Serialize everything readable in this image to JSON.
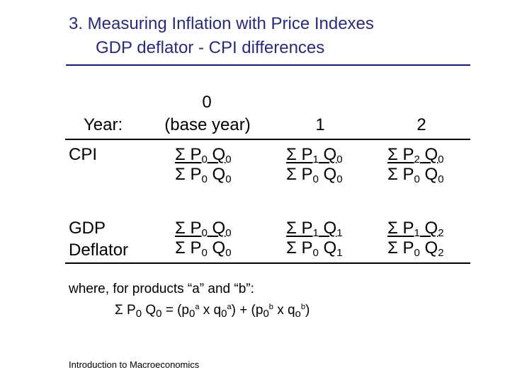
{
  "slide": {
    "title_line1": "3.  Measuring Inflation with Price Indexes",
    "title_line2": "GDP deflator - CPI differences",
    "footer": "Introduction to Macroeconomics",
    "title_color": "#2a2a7a"
  },
  "table": {
    "header": {
      "year_label": "Year:",
      "col0_top": "0",
      "col0_bottom": "(base year)",
      "col1": "1",
      "col2": "2"
    },
    "rows": [
      {
        "label": [
          "CPI"
        ],
        "cells": [
          {
            "num": "Σ P0 Q0",
            "den": "Σ P0 Q0"
          },
          {
            "num": "Σ P1 Q0",
            "den": "Σ P0 Q0"
          },
          {
            "num": "Σ P2 Q0",
            "den": "Σ P0 Q0"
          }
        ]
      },
      {
        "label": [
          "GDP",
          "Deflator"
        ],
        "cells": [
          {
            "num": "Σ P0 Q0",
            "den": "Σ P0 Q0"
          },
          {
            "num": "Σ P1 Q1",
            "den": "Σ P0 Q1"
          },
          {
            "num": "Σ P1 Q2",
            "den": "Σ P0 Q2"
          }
        ]
      }
    ]
  },
  "note": {
    "intro": "where, for products “a” and “b”:",
    "formula": "Σ P0 Q0 = (p0a x q0a) + (p0b x qob)"
  }
}
